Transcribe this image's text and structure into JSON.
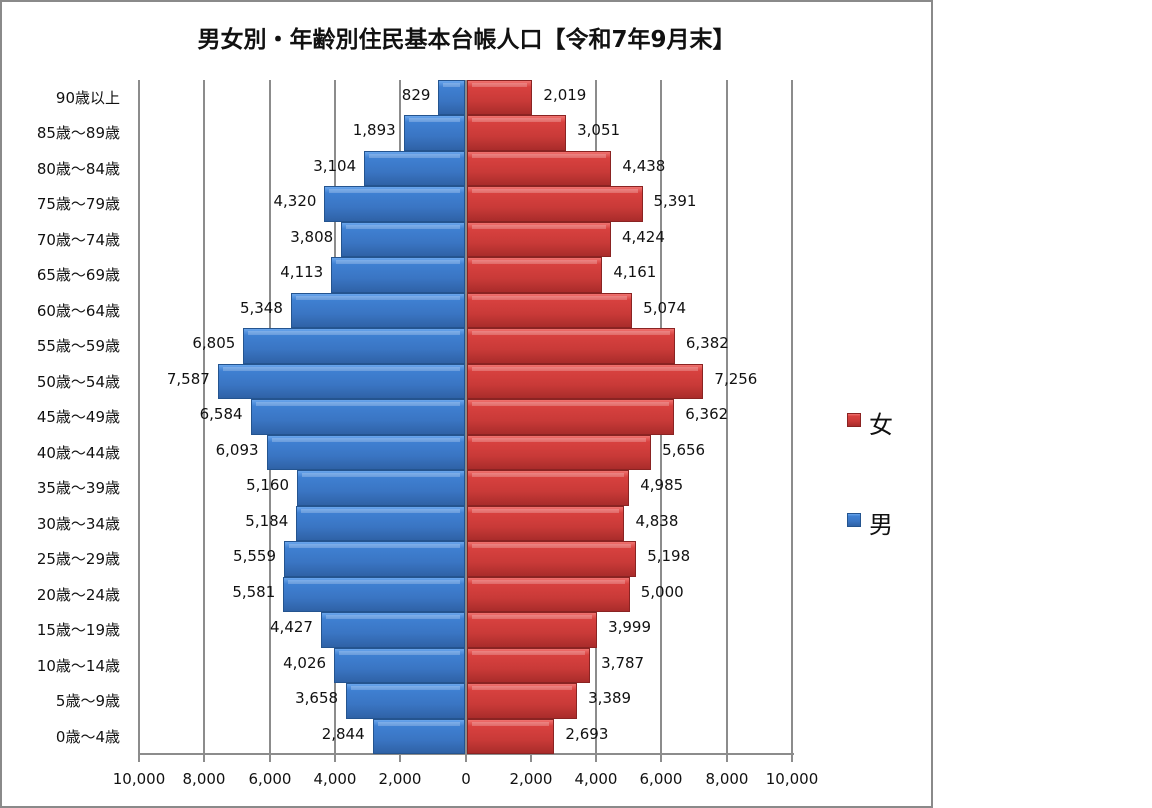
{
  "chart_data": {
    "type": "bar",
    "orientation": "horizontal",
    "subtype": "population-pyramid",
    "title": "男女別・年齢別住民基本台帳人口【令和7年9月末】",
    "xlabel": "",
    "ylabel": "",
    "xlim": [
      -10000,
      10000
    ],
    "grid": true,
    "legend_position": "right",
    "x_tick_labels": [
      "10,000",
      "8,000",
      "6,000",
      "4,000",
      "2,000",
      "0",
      "2,000",
      "4,000",
      "6,000",
      "8,000",
      "10,000"
    ],
    "categories": [
      "90歳以上",
      "85歳～89歳",
      "80歳～84歳",
      "75歳～79歳",
      "70歳～74歳",
      "65歳～69歳",
      "60歳～64歳",
      "55歳～59歳",
      "50歳～54歳",
      "45歳～49歳",
      "40歳～44歳",
      "35歳～39歳",
      "30歳～34歳",
      "25歳～29歳",
      "20歳～24歳",
      "15歳～19歳",
      "10歳～14歳",
      "5歳～9歳",
      "0歳～4歳"
    ],
    "series": [
      {
        "name": "男",
        "color": "#3a75c3",
        "side": "left",
        "values": [
          829,
          1893,
          3104,
          4320,
          3808,
          4113,
          5348,
          6805,
          7587,
          6584,
          6093,
          5160,
          5184,
          5559,
          5581,
          4427,
          4026,
          3658,
          2844
        ],
        "labels": [
          "829",
          "1,893",
          "3,104",
          "4,320",
          "3,808",
          "4,113",
          "5,348",
          "6,805",
          "7,587",
          "6,584",
          "6,093",
          "5,160",
          "5,184",
          "5,559",
          "5,581",
          "4,427",
          "4,026",
          "3,658",
          "2,844"
        ]
      },
      {
        "name": "女",
        "color": "#c93a38",
        "side": "right",
        "values": [
          2019,
          3051,
          4438,
          5391,
          4424,
          4161,
          5074,
          6382,
          7256,
          6362,
          5656,
          4985,
          4838,
          5198,
          5000,
          3999,
          3787,
          3389,
          2693
        ],
        "labels": [
          "2,019",
          "3,051",
          "4,438",
          "5,391",
          "4,424",
          "4,161",
          "5,074",
          "6,382",
          "7,256",
          "6,362",
          "5,656",
          "4,985",
          "4,838",
          "5,198",
          "5,000",
          "3,999",
          "3,787",
          "3,389",
          "2,693"
        ]
      }
    ],
    "legend": [
      {
        "label": "女",
        "color": "#c93a38"
      },
      {
        "label": "男",
        "color": "#3a75c3"
      }
    ]
  }
}
